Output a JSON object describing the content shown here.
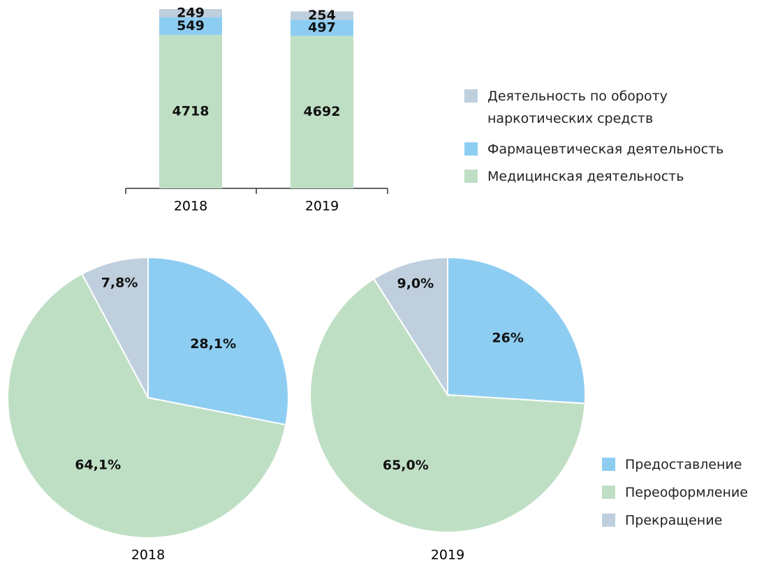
{
  "chart_data": [
    {
      "type": "bar",
      "stacked": true,
      "categories": [
        "2018",
        "2019"
      ],
      "series": [
        {
          "name": "Медицинская деятельность",
          "color": "#bfdfc4",
          "values": [
            4718,
            4692
          ]
        },
        {
          "name": "Фармацевтическая деятельность",
          "color": "#8ecdf2",
          "values": [
            549,
            497
          ]
        },
        {
          "name": "Деятельность по обороту наркотических средств",
          "color": "#bfcfdd",
          "values": [
            249,
            254
          ]
        }
      ]
    },
    {
      "type": "pie",
      "title": "2018",
      "categories": [
        "Предоставление",
        "Переоформление",
        "Прекращение"
      ],
      "values": [
        28.1,
        64.1,
        7.8
      ],
      "value_labels": [
        "28,1%",
        "64,1%",
        "7,8%"
      ],
      "colors": [
        "#8ecdf2",
        "#bfdfc4",
        "#bfcfdd"
      ]
    },
    {
      "type": "pie",
      "title": "2019",
      "values": [
        26,
        65.0,
        9.0
      ],
      "value_labels": [
        "26%",
        "65,0%",
        "9,0%"
      ],
      "colors": [
        "#8ecdf2",
        "#bfdfc4",
        "#bfcfdd"
      ]
    }
  ]
}
